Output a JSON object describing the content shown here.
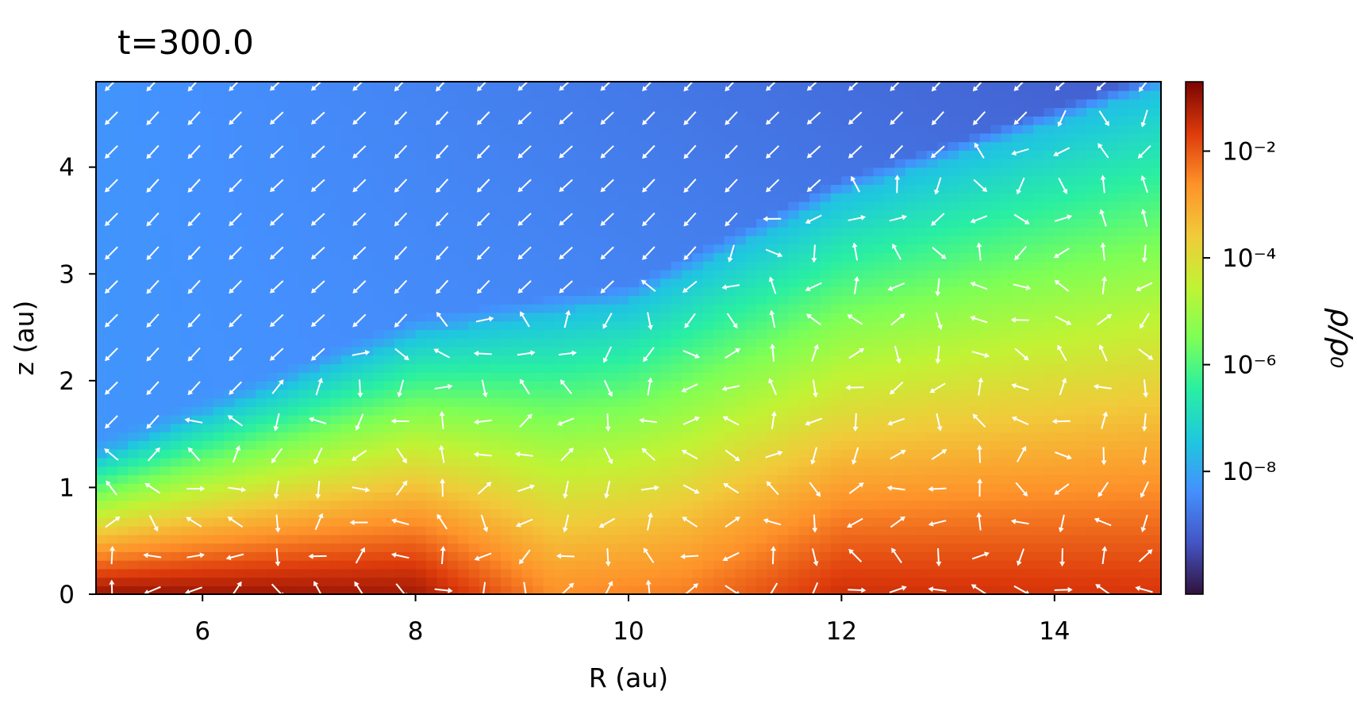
{
  "chart_data": {
    "type": "heatmap",
    "title": "t=300.0",
    "xlabel": "R (au)",
    "ylabel": "z (au)",
    "xlim": [
      5,
      15
    ],
    "ylim": [
      0,
      4.8
    ],
    "x_ticks": [
      6,
      8,
      10,
      12,
      14
    ],
    "y_ticks": [
      0,
      1,
      2,
      3,
      4
    ],
    "x_tick_labels": [
      "6",
      "8",
      "10",
      "12",
      "14"
    ],
    "y_tick_labels": [
      "0",
      "1",
      "2",
      "3",
      "4"
    ],
    "colorbar": {
      "label": "ρ/ρ₀",
      "scale": "log",
      "colormap": "turbo",
      "range_log10": [
        -10.3,
        -0.7
      ],
      "ticks_log10": [
        -2,
        -4,
        -6,
        -8
      ],
      "tick_labels": [
        "10⁻²",
        "10⁻⁴",
        "10⁻⁶",
        "10⁻⁸"
      ]
    },
    "density_profile": {
      "midplane_peaks": [
        {
          "R": 5.0,
          "log10_rho": -1.0
        },
        {
          "R": 8.0,
          "log10_rho": -1.1
        },
        {
          "R": 9.3,
          "log10_rho": -2.6
        },
        {
          "R": 10.5,
          "log10_rho": -2.4
        },
        {
          "R": 12.0,
          "log10_rho": -1.5
        },
        {
          "R": 15.0,
          "log10_rho": -1.6
        }
      ],
      "surface_boundary": [
        {
          "R": 5.0,
          "z": 1.3
        },
        {
          "R": 8.0,
          "z": 2.45
        },
        {
          "R": 10.0,
          "z": 2.75
        },
        {
          "R": 12.0,
          "z": 3.75
        },
        {
          "R": 15.0,
          "z": 4.75
        }
      ],
      "atmosphere_log10_rho": -8.3
    },
    "vector_field": {
      "description": "velocity arrows (white)",
      "color": "#ffffff",
      "grid_R_count": 26,
      "grid_z_count": 16
    }
  }
}
